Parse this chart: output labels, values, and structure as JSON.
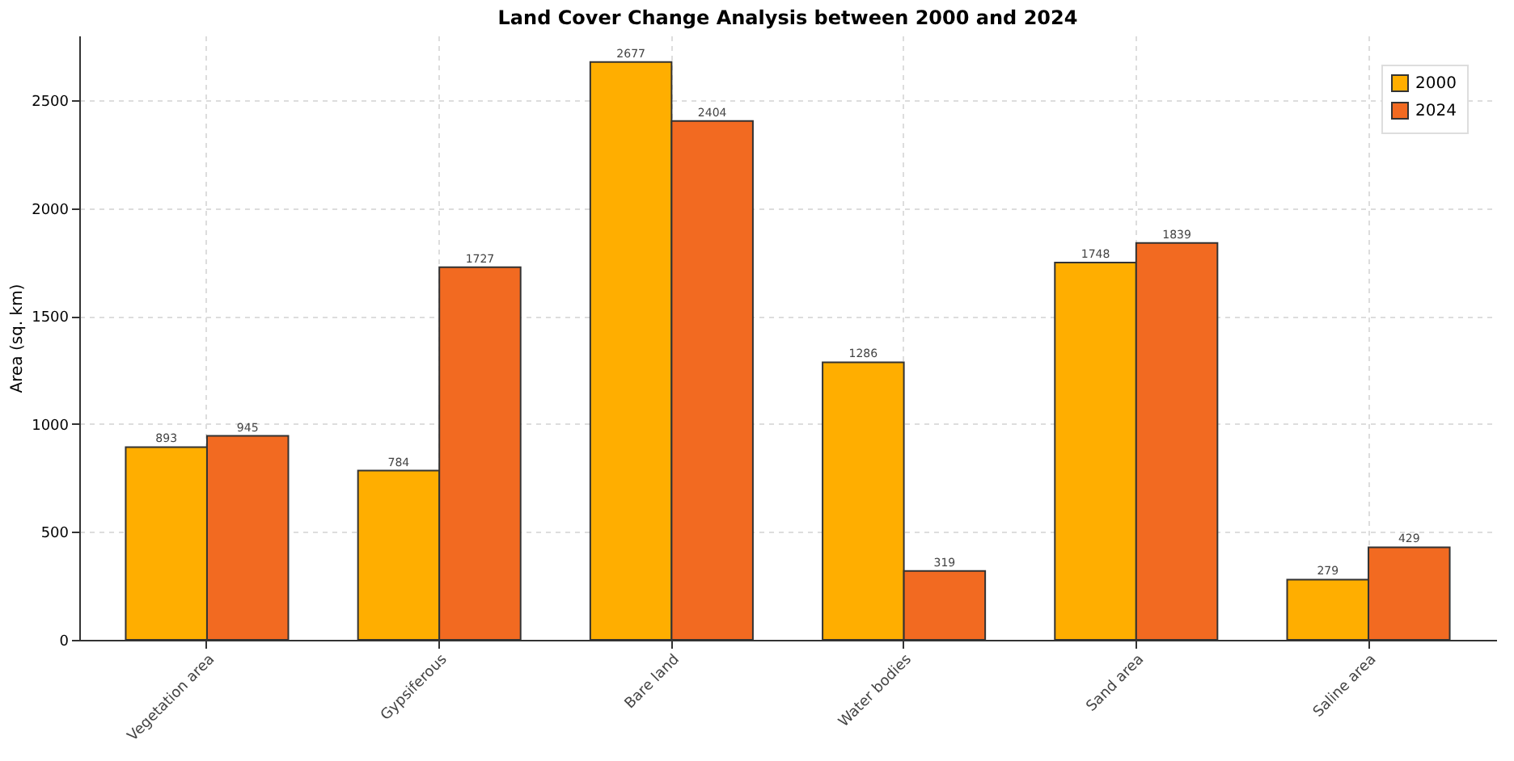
{
  "chart_data": {
    "type": "bar",
    "title": "Land Cover Change Analysis between 2000 and 2024",
    "ylabel": "Area (sq. km)",
    "categories": [
      "Vegetation area",
      "Gypsiferous",
      "Bare land",
      "Water bodies",
      "Sand area",
      "Saline area"
    ],
    "series": [
      {
        "name": "2000",
        "color": "#ffae00",
        "values": [
          893,
          784,
          2677,
          1286,
          1748,
          279
        ]
      },
      {
        "name": "2024",
        "color": "#f26a21",
        "values": [
          945,
          1727,
          2404,
          319,
          1839,
          429
        ]
      }
    ],
    "ylim": [
      0,
      2800
    ],
    "yticks": [
      0,
      500,
      1000,
      1500,
      2000,
      2500
    ],
    "grid": true,
    "legend": "top right",
    "data_labels": true
  }
}
